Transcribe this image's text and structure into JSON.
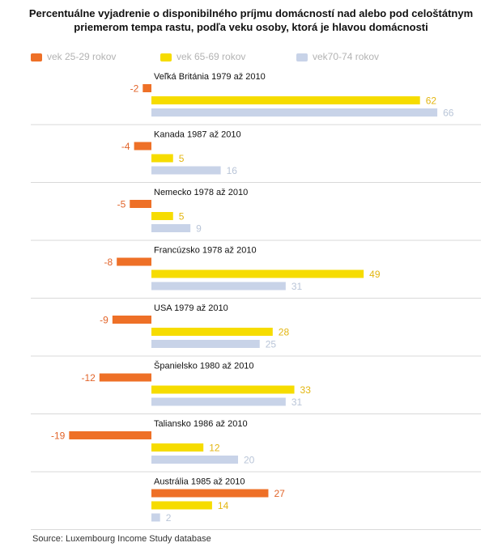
{
  "title_lines": [
    "Percentuálne vyjadrenie o disponibilného príjmu domácností nad alebo pod celoštátnym",
    "priemerom tempa rastu, podľa veku osoby, ktorá je hlavou domácnosti"
  ],
  "source": "Source: Luxembourg Income Study database",
  "legend": [
    {
      "label": "vek 25-29 rokov",
      "color": "#ee7027"
    },
    {
      "label": "vek 65-69 rokov",
      "color": "#f6dc00"
    },
    {
      "label": "vek70-74 rokov",
      "color": "#c8d3e8"
    }
  ],
  "colors": {
    "young": "#ee7027",
    "mid": "#f6dc00",
    "old": "#c8d3e8",
    "young_text": "#e2642a",
    "mid_text": "#e3b611",
    "old_text": "#b9c5d8",
    "divider": "#d9d9d9"
  },
  "chart_data": {
    "type": "bar",
    "orientation": "horizontal",
    "series_names": [
      "vek 25-29 rokov",
      "vek 65-69 rokov",
      "vek70-74 rokov"
    ],
    "groups": [
      {
        "label": "Veľká Británia 1979 až 2010",
        "values": [
          -2,
          62,
          66
        ]
      },
      {
        "label": "Kanada 1987 až 2010",
        "values": [
          -4,
          5,
          16
        ]
      },
      {
        "label": "Nemecko 1978 až 2010",
        "values": [
          -5,
          5,
          9
        ]
      },
      {
        "label": "Francúzsko 1978 až 2010",
        "values": [
          -8,
          49,
          31
        ]
      },
      {
        "label": "USA 1979 až 2010",
        "values": [
          -9,
          28,
          25
        ]
      },
      {
        "label": "Španielsko 1980 až 2010",
        "values": [
          -12,
          33,
          31
        ]
      },
      {
        "label": "Taliansko 1986 až 2010",
        "values": [
          -19,
          12,
          20
        ]
      },
      {
        "label": "Austrália 1985 až 2010",
        "values": [
          27,
          14,
          2
        ]
      }
    ]
  }
}
